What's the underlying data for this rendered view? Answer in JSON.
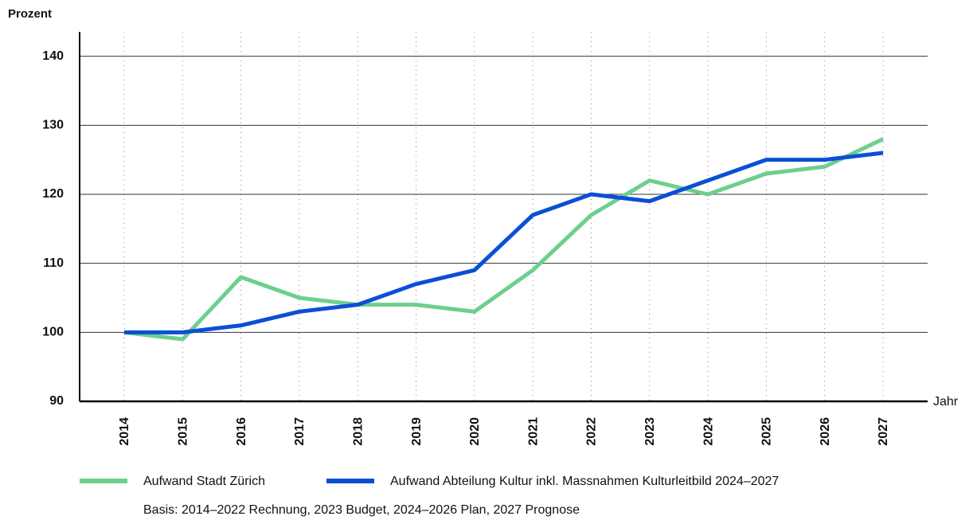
{
  "chart_data": {
    "type": "line",
    "y_label": "Prozent",
    "x_label": "Jahr",
    "categories": [
      "2014",
      "2015",
      "2016",
      "2017",
      "2018",
      "2019",
      "2020",
      "2021",
      "2022",
      "2023",
      "2024",
      "2025",
      "2026",
      "2027"
    ],
    "series": [
      {
        "name": "Aufwand Stadt Zürich",
        "color": "#6dcf8e",
        "values": [
          100,
          99,
          108,
          105,
          104,
          104,
          103,
          109,
          117,
          122,
          120,
          123,
          124,
          128
        ]
      },
      {
        "name": "Aufwand Abteilung Kultur inkl. Massnahmen Kulturleitbild 2024–2027",
        "color": "#0a4fd6",
        "values": [
          100,
          100,
          101,
          103,
          104,
          107,
          109,
          117,
          120,
          119,
          122,
          125,
          125,
          126
        ]
      }
    ],
    "ylim": [
      90,
      144
    ],
    "yticks": [
      90,
      100,
      110,
      120,
      130,
      140
    ],
    "grid": true,
    "note": "Basis: 2014–2022 Rechnung, 2023 Budget, 2024–2026 Plan, 2027 Prognose"
  }
}
